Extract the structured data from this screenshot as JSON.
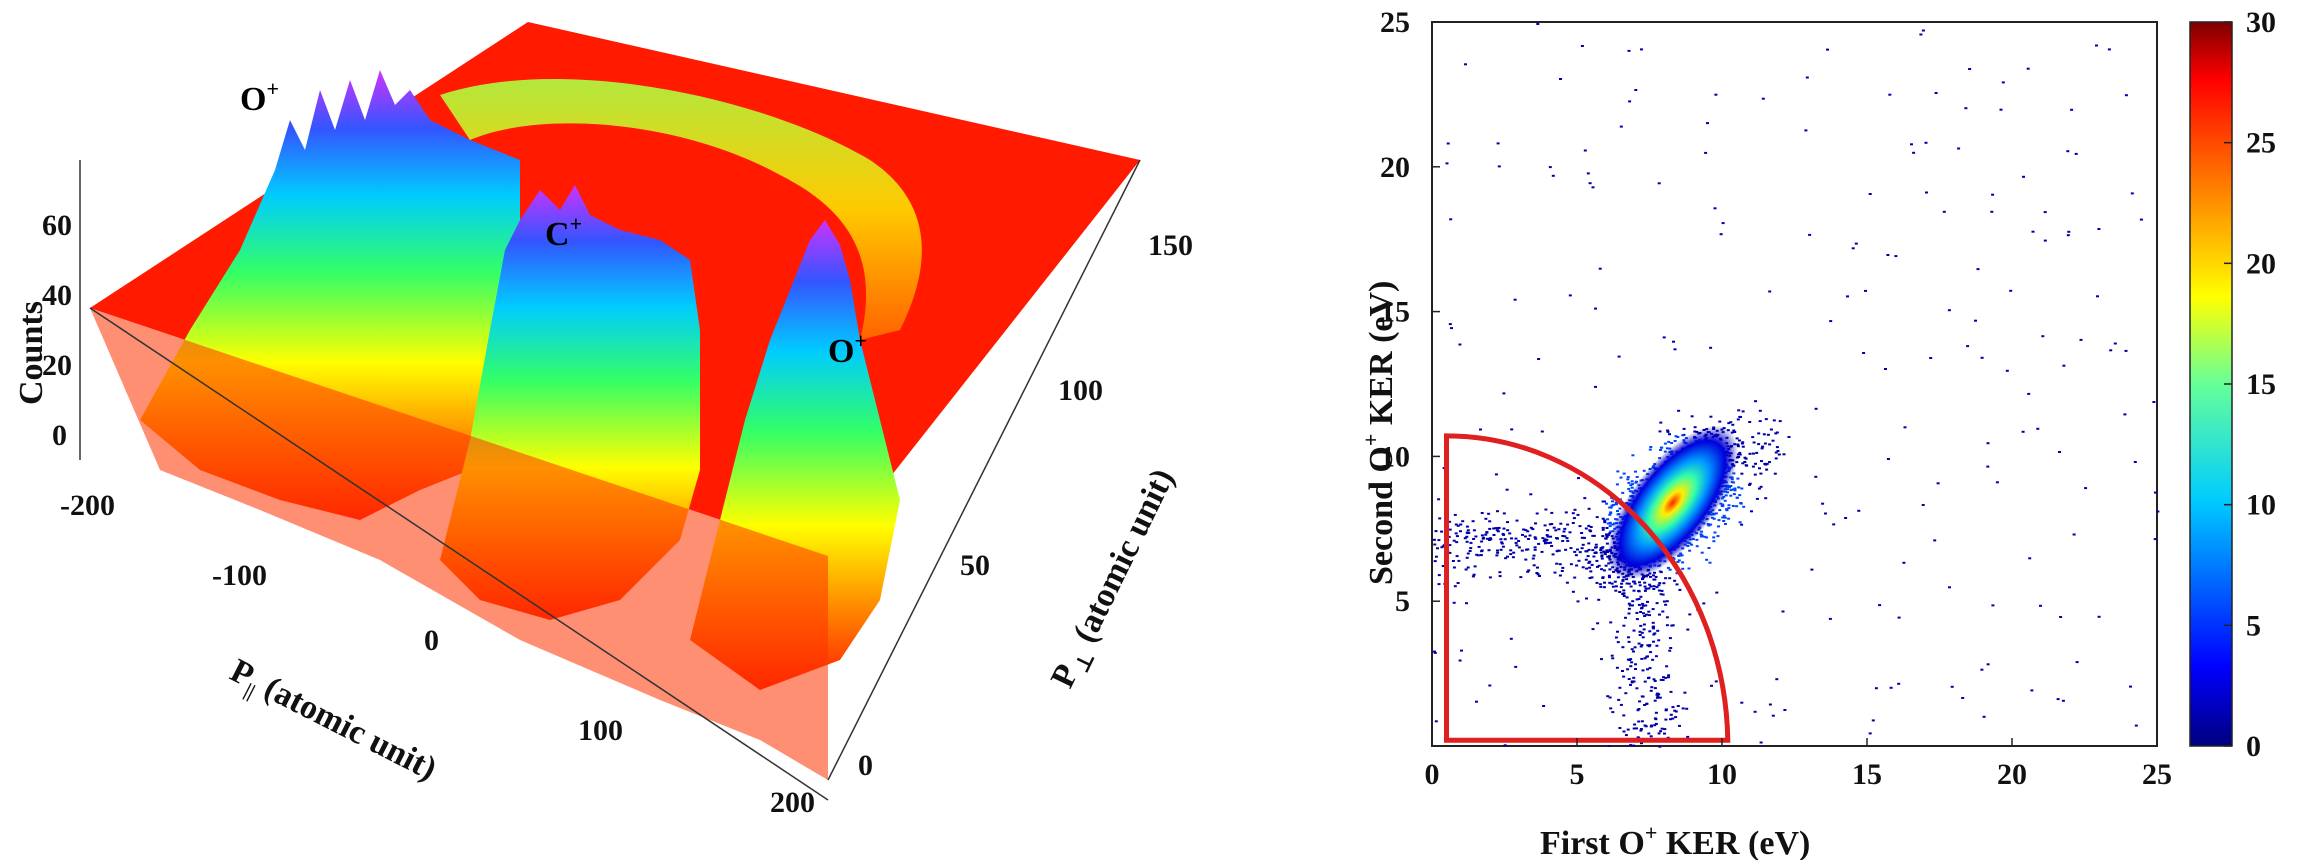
{
  "chart_data": [
    {
      "type": "surface",
      "zlabel": "Counts",
      "zticks": [
        "0",
        "20",
        "40",
        "60"
      ],
      "xlabel_main": "P",
      "xlabel_sub": "||",
      "xlabel_rest": " (atomic unit)",
      "xticks": [
        "-200",
        "-100",
        "0",
        "100",
        "200"
      ],
      "ylabel_main": "P",
      "ylabel_sub": "⊥",
      "ylabel_rest": " (atomic unit)",
      "yticks": [
        "0",
        "50",
        "100",
        "150"
      ],
      "peaks": [
        {
          "base": "O",
          "sup": "+",
          "approx_height": 75
        },
        {
          "base": "C",
          "sup": "+",
          "approx_height": 60
        },
        {
          "base": "O",
          "sup": "+",
          "approx_height": 60
        }
      ],
      "colormap": [
        "#ff0000",
        "#ff8c00",
        "#ffff00",
        "#00ff66",
        "#00ccff",
        "#3355ff",
        "#cc33ff"
      ]
    },
    {
      "type": "heatmap",
      "xlabel_pre": "First O",
      "xlabel_sup": "+",
      "xlabel_post": " KER (eV)",
      "ylabel_pre": "Second O",
      "ylabel_sup": "+",
      "ylabel_post": " KER (eV)",
      "xlim": [
        0,
        25
      ],
      "ylim": [
        0,
        25
      ],
      "xticks": [
        "0",
        "5",
        "10",
        "15",
        "20",
        "25"
      ],
      "yticks": [
        "5",
        "10",
        "15",
        "20",
        "25"
      ],
      "peak_center": [
        8.3,
        8.4
      ],
      "colorbar": {
        "range": [
          0,
          30
        ],
        "ticks": [
          "0",
          "5",
          "10",
          "15",
          "20",
          "25",
          "30"
        ],
        "colors": [
          "#00007f",
          "#0000ff",
          "#0080ff",
          "#00ffff",
          "#80ff80",
          "#ffff00",
          "#ff8000",
          "#ff0000",
          "#7f0000"
        ]
      },
      "gate": {
        "shape": "quarter-circle",
        "radius_eV": 10.2,
        "color": "#e02020"
      }
    }
  ]
}
